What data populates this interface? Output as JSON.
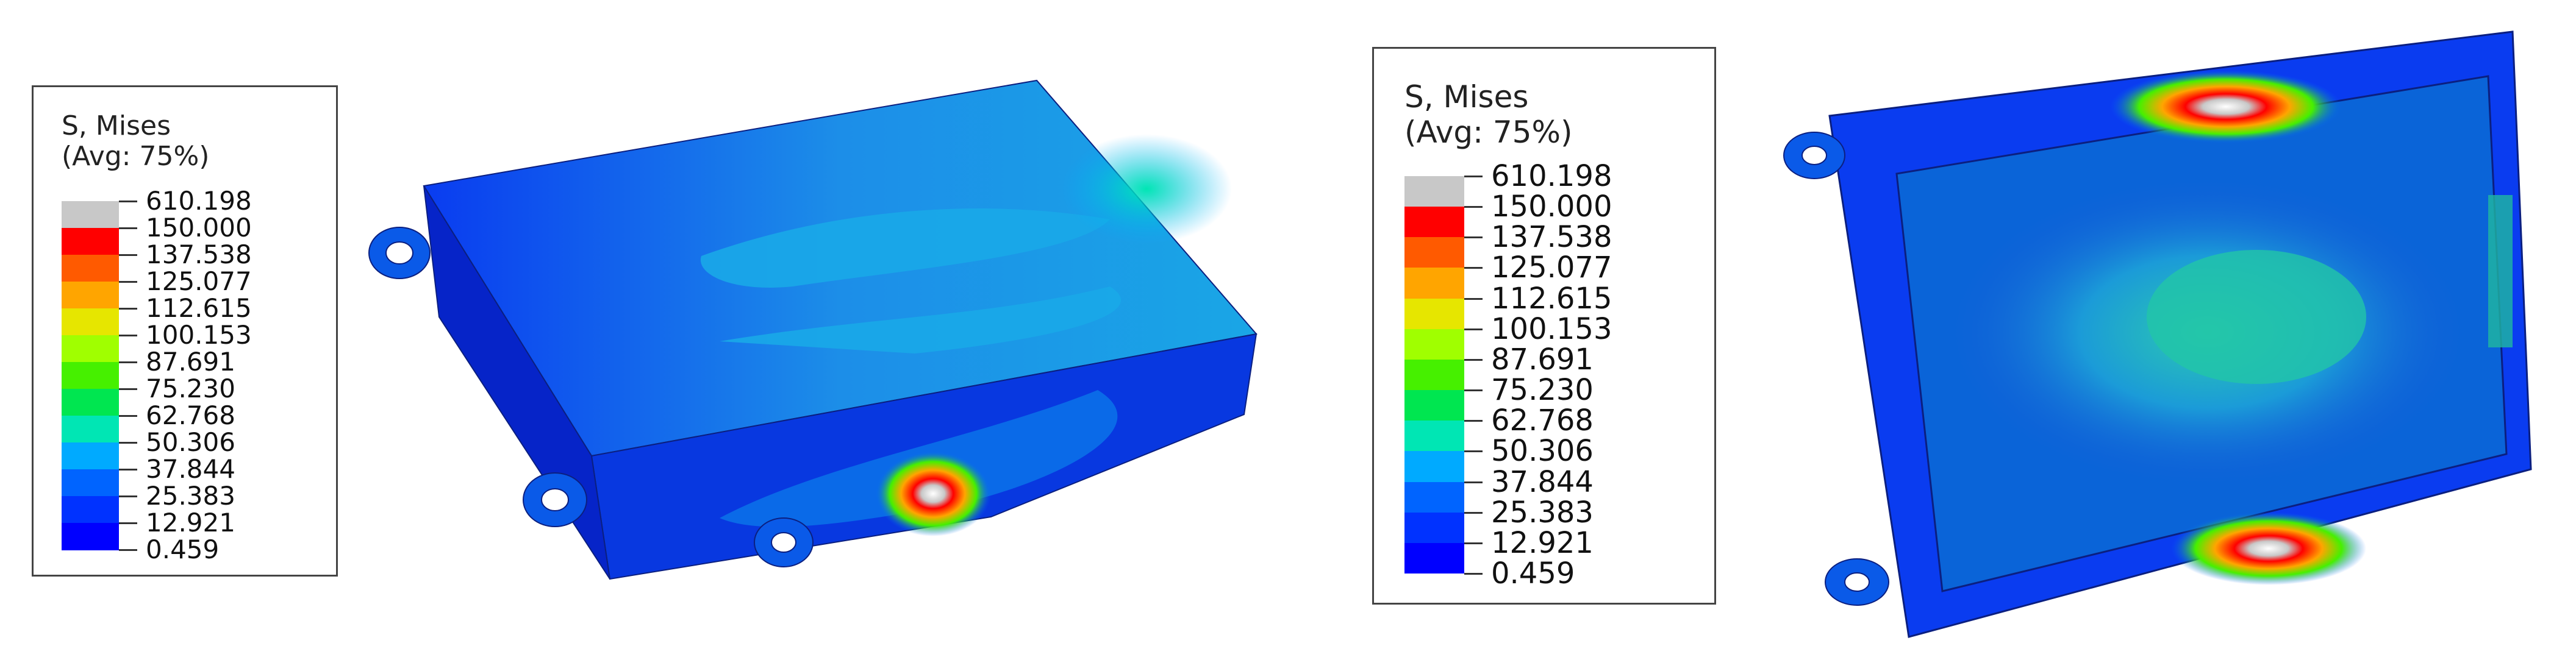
{
  "legends": [
    {
      "title_line1": "S, Mises",
      "title_line2": "(Avg: 75%)",
      "values": [
        "610.198",
        "150.000",
        "137.538",
        "125.077",
        "112.615",
        "100.153",
        "87.691",
        "75.230",
        "62.768",
        "50.306",
        "37.844",
        "25.383",
        "12.921",
        "0.459"
      ],
      "colors": [
        "#c8c8c8",
        "#ff0000",
        "#ff5a00",
        "#ffa500",
        "#e6e600",
        "#a0ff00",
        "#46f000",
        "#00e650",
        "#00e6b4",
        "#00aaff",
        "#0064ff",
        "#0032ff",
        "#0000ff"
      ]
    },
    {
      "title_line1": "S, Mises",
      "title_line2": "(Avg: 75%)",
      "values": [
        "610.198",
        "150.000",
        "137.538",
        "125.077",
        "112.615",
        "100.153",
        "87.691",
        "75.230",
        "62.768",
        "50.306",
        "37.844",
        "25.383",
        "12.921",
        "0.459"
      ],
      "colors": [
        "#c8c8c8",
        "#ff0000",
        "#ff5a00",
        "#ffa500",
        "#e6e600",
        "#a0ff00",
        "#46f000",
        "#00e650",
        "#00e6b4",
        "#00aaff",
        "#0064ff",
        "#0032ff",
        "#0000ff"
      ]
    }
  ]
}
